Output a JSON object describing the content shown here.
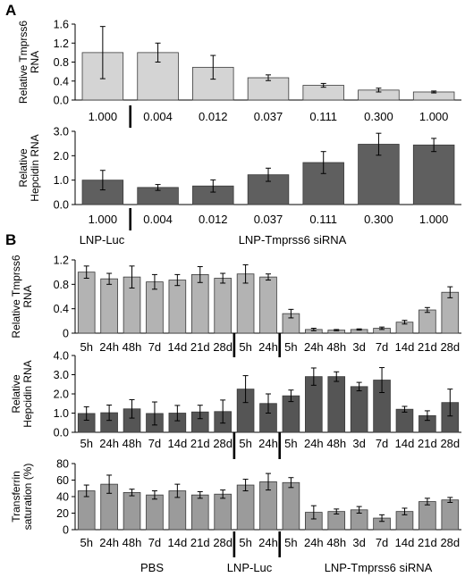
{
  "panel_letters": [
    "A",
    "B"
  ],
  "chart_data": [
    {
      "type": "bar",
      "panel": "A",
      "ylabel": [
        "Relative Tmprss6",
        "RNA"
      ],
      "ylim": [
        0,
        1.6
      ],
      "yticks": [
        "0.0",
        "0.4",
        "0.8",
        "1.2",
        "1.6"
      ],
      "categories": [
        "1.000",
        "0.004",
        "0.012",
        "0.037",
        "0.111",
        "0.300",
        "1.000"
      ],
      "values": [
        1.0,
        1.0,
        0.69,
        0.47,
        0.31,
        0.21,
        0.17
      ],
      "errors": [
        0.55,
        0.2,
        0.25,
        0.06,
        0.04,
        0.04,
        0.02
      ],
      "color": "#d4d4d4",
      "separator_after": 0
    },
    {
      "type": "bar",
      "panel": "A",
      "ylabel": [
        "Relative",
        "Hepcidin RNA"
      ],
      "ylim": [
        0,
        3.0
      ],
      "yticks": [
        "0.0",
        "1.0",
        "2.0",
        "3.0"
      ],
      "categories": [
        "1.000",
        "0.004",
        "0.012",
        "0.037",
        "0.111",
        "0.300",
        "1.000"
      ],
      "values": [
        1.0,
        0.7,
        0.76,
        1.22,
        1.72,
        2.47,
        2.44
      ],
      "errors": [
        0.4,
        0.12,
        0.25,
        0.27,
        0.45,
        0.45,
        0.27
      ],
      "color": "#5f5f5f",
      "separator_after": 0,
      "group_labels": [
        "LNP-Luc",
        "LNP-Tmprss6 siRNA"
      ]
    },
    {
      "type": "bar",
      "panel": "B",
      "ylabel": [
        "Relative Tmprss6",
        "RNA"
      ],
      "ylim": [
        0,
        1.2
      ],
      "yticks": [
        "0",
        "0.4",
        "0.8",
        "1.2"
      ],
      "categories": [
        "5h",
        "24h",
        "48h",
        "7d",
        "14d",
        "21d",
        "28d",
        "5h",
        "24h",
        "5h",
        "24h",
        "48h",
        "3d",
        "7d",
        "14d",
        "21d",
        "28d"
      ],
      "values": [
        1.0,
        0.89,
        0.92,
        0.84,
        0.87,
        0.96,
        0.9,
        0.97,
        0.92,
        0.32,
        0.06,
        0.05,
        0.06,
        0.08,
        0.18,
        0.38,
        0.67
      ],
      "errors": [
        0.1,
        0.09,
        0.18,
        0.12,
        0.09,
        0.13,
        0.08,
        0.15,
        0.05,
        0.07,
        0.02,
        0.01,
        0.01,
        0.02,
        0.03,
        0.04,
        0.09
      ],
      "color": "#b3b3b3",
      "separator_after": [
        6,
        8
      ]
    },
    {
      "type": "bar",
      "panel": "B",
      "ylabel": [
        "Relative",
        "Hepcidin RNA"
      ],
      "ylim": [
        0,
        4.0
      ],
      "yticks": [
        "0.0",
        "1.0",
        "2.0",
        "3.0",
        "4.0"
      ],
      "categories": [
        "5h",
        "24h",
        "48h",
        "7d",
        "14d",
        "21d",
        "28d",
        "5h",
        "24h",
        "5h",
        "24h",
        "48h",
        "3d",
        "7d",
        "14d",
        "21d",
        "28d"
      ],
      "values": [
        0.98,
        1.02,
        1.22,
        0.98,
        1.0,
        1.06,
        1.08,
        2.25,
        1.5,
        1.9,
        2.9,
        2.9,
        2.38,
        2.72,
        1.2,
        0.87,
        1.55
      ],
      "errors": [
        0.35,
        0.4,
        0.48,
        0.6,
        0.4,
        0.35,
        0.6,
        0.7,
        0.5,
        0.3,
        0.45,
        0.25,
        0.22,
        0.65,
        0.15,
        0.25,
        0.7
      ],
      "color": "#555555",
      "separator_after": [
        6,
        8
      ]
    },
    {
      "type": "bar",
      "panel": "B",
      "ylabel": [
        "Transferrin",
        "saturation (%)"
      ],
      "ylim": [
        0,
        80
      ],
      "yticks": [
        "0",
        "20",
        "40",
        "60",
        "80"
      ],
      "categories": [
        "5h",
        "24h",
        "48h",
        "7d",
        "14d",
        "21d",
        "28d",
        "5h",
        "24h",
        "5h",
        "24h",
        "48h",
        "3d",
        "7d",
        "14d",
        "21d",
        "28d"
      ],
      "values": [
        47,
        55,
        45,
        42,
        47,
        42,
        43,
        54,
        58,
        57,
        21,
        22,
        24,
        14,
        22,
        34,
        36
      ],
      "errors": [
        7,
        11,
        4,
        5,
        8,
        4,
        5,
        7,
        10,
        6,
        8,
        3,
        4,
        4,
        4,
        4,
        3
      ],
      "color": "#9b9b9b",
      "separator_after": [
        6,
        8
      ],
      "group_labels": [
        "PBS",
        "LNP-Luc",
        "LNP-Tmprss6 siRNA"
      ]
    }
  ]
}
